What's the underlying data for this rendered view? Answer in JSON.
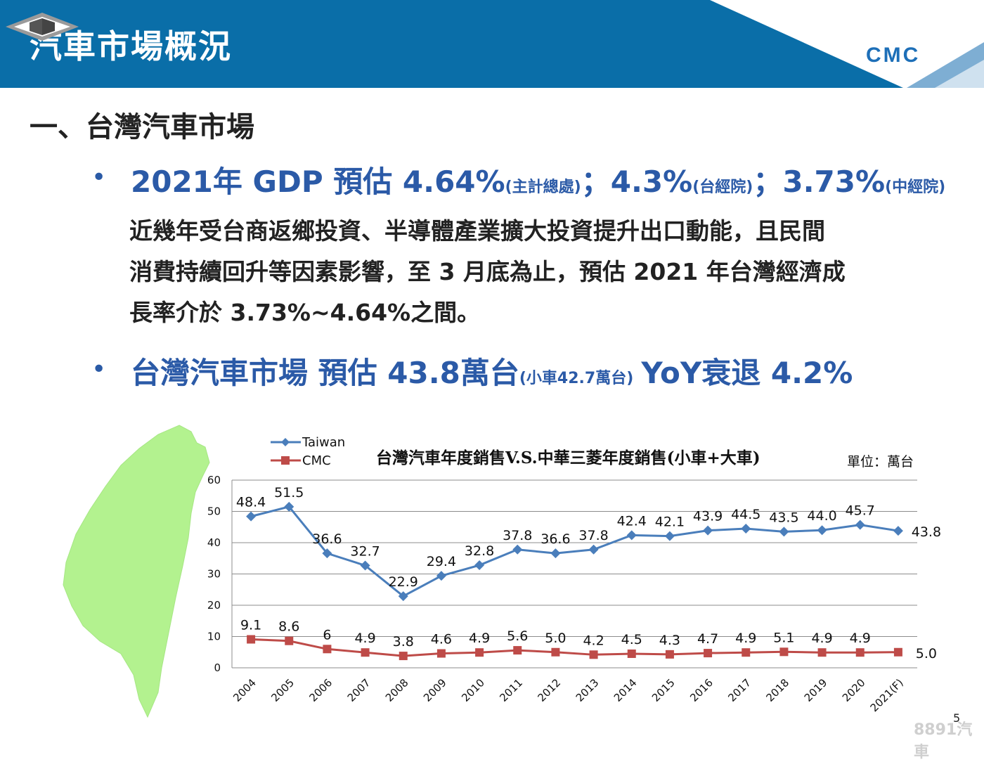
{
  "header": {
    "title": "汽車市場概況",
    "logo_text": "CMC",
    "colors": {
      "band": "#0a6ea8",
      "triangle_light": "#cfe1ef",
      "triangle_mid": "#7eaed3"
    }
  },
  "section_heading": "一、台灣汽車市場",
  "gdp": {
    "prefix": "2021年 GDP 預估 ",
    "v1": "4.64%",
    "s1": "(主計總處)",
    "sep1": "；",
    "v2": "4.3%",
    "s2": "(台經院)",
    "sep2": "；",
    "v3": "3.73%",
    "s3": "(中經院)"
  },
  "paragraph": {
    "line1": "近幾年受台商返鄉投資、半導體產業擴大投資提升出口動能，且民間",
    "line2": "消費持續回升等因素影響，至 3 月底為止，預估 2021 年台灣經濟成",
    "line3": "長率介於 3.73%~4.64%之間。"
  },
  "market": {
    "main": "台灣汽車市場 預估 43.8萬台",
    "small": "(小車42.7萬台)",
    "yoy": "YoY衰退 4.2%"
  },
  "bullet_char": "•",
  "page_number": "5",
  "watermark": "8891汽車",
  "chart_data": {
    "type": "line",
    "title": "台灣汽車年度銷售V.S.中華三菱年度銷售(小車+大車)",
    "unit": "單位：萬台",
    "xlabel": "",
    "ylabel": "",
    "ylim": [
      0,
      60
    ],
    "yticks": [
      0,
      10,
      20,
      30,
      40,
      50,
      60
    ],
    "grid": true,
    "legend_position": "top-left",
    "categories": [
      "2004",
      "2005",
      "2006",
      "2007",
      "2008",
      "2009",
      "2010",
      "2011",
      "2012",
      "2013",
      "2014",
      "2015",
      "2016",
      "2017",
      "2018",
      "2019",
      "2020",
      "2021(F)"
    ],
    "series": [
      {
        "name": "Taiwan",
        "color": "#4a7ebb",
        "marker": "diamond",
        "values": [
          48.4,
          51.5,
          36.6,
          32.7,
          22.9,
          29.4,
          32.8,
          37.8,
          36.6,
          37.8,
          42.4,
          42.1,
          43.9,
          44.5,
          43.5,
          44.0,
          45.7,
          43.8
        ],
        "labels": [
          "48.4",
          "51.5",
          "36.6",
          "32.7",
          "22.9",
          "29.4",
          "32.8",
          "37.8",
          "36.6",
          "37.8",
          "42.4",
          "42.1",
          "43.9",
          "44.5",
          "43.5",
          "44.0",
          "45.7",
          "43.8"
        ]
      },
      {
        "name": "CMC",
        "color": "#be4b48",
        "marker": "square",
        "values": [
          9.1,
          8.6,
          6,
          4.9,
          3.8,
          4.6,
          4.9,
          5.6,
          5.0,
          4.2,
          4.5,
          4.3,
          4.7,
          4.9,
          5.1,
          4.9,
          4.9,
          5.0
        ],
        "labels": [
          "9.1",
          "8.6",
          "6",
          "4.9",
          "3.8",
          "4.6",
          "4.9",
          "5.6",
          "5.0",
          "4.2",
          "4.5",
          "4.3",
          "4.7",
          "4.9",
          "5.1",
          "4.9",
          "4.9",
          "5.0"
        ]
      }
    ]
  }
}
